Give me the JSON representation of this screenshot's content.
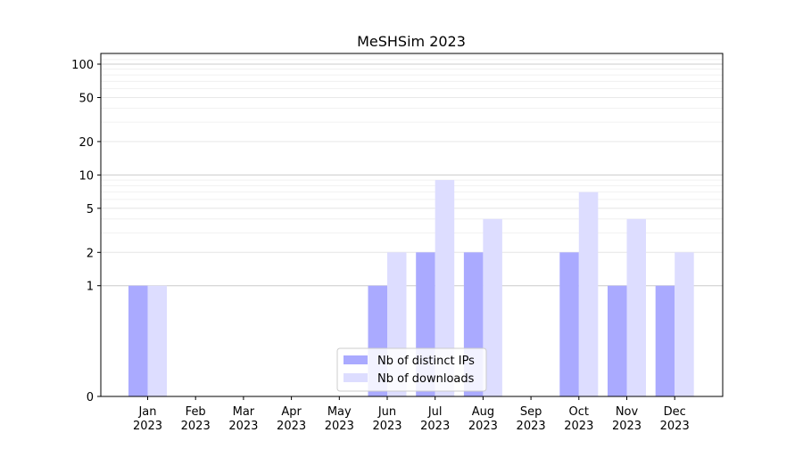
{
  "chart_data": {
    "type": "bar",
    "title": "MeSHSim 2023",
    "xlabel": "",
    "ylabel": "",
    "y_scale": "symlog",
    "ylim": [
      0,
      125
    ],
    "y_ticks": [
      0,
      1,
      2,
      5,
      10,
      20,
      50,
      100
    ],
    "categories": [
      "Jan\n2023",
      "Feb\n2023",
      "Mar\n2023",
      "Apr\n2023",
      "May\n2023",
      "Jun\n2023",
      "Jul\n2023",
      "Aug\n2023",
      "Sep\n2023",
      "Oct\n2023",
      "Nov\n2023",
      "Dec\n2023"
    ],
    "series": [
      {
        "name": "Nb of distinct IPs",
        "color": "#aaaaff",
        "values": [
          1,
          0,
          0,
          0,
          0,
          1,
          2,
          2,
          0,
          2,
          1,
          1
        ]
      },
      {
        "name": "Nb of downloads",
        "color": "#ddddff",
        "values": [
          1,
          0,
          0,
          0,
          0,
          2,
          9,
          4,
          0,
          7,
          4,
          2
        ]
      }
    ],
    "grid": true,
    "legend_position": "bottom-center"
  }
}
